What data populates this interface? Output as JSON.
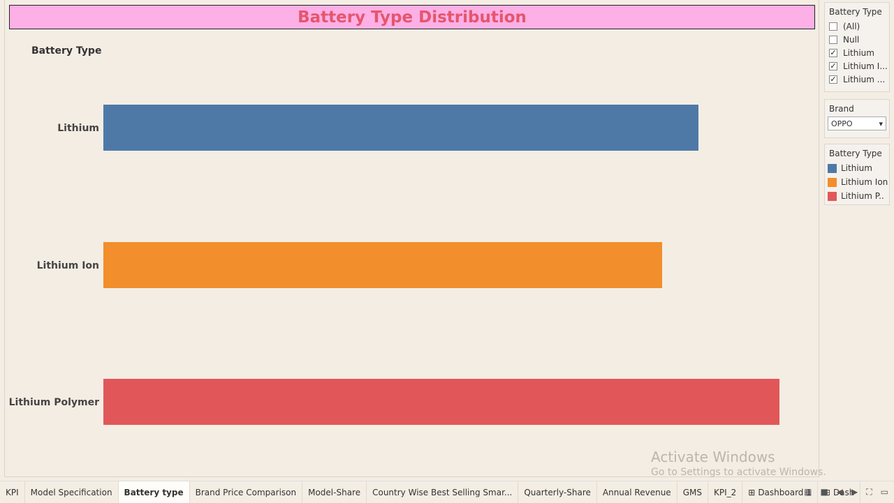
{
  "title": "Battery Type Distribution",
  "row_header": "Battery Type",
  "chart_data": {
    "type": "bar",
    "orientation": "horizontal",
    "categories": [
      "Lithium",
      "Lithium Ion",
      "Lithium Polymer"
    ],
    "values": [
      852,
      800,
      968
    ],
    "colors": [
      "#4e79a7",
      "#f28e2b",
      "#e15759"
    ],
    "title": "Battery Type Distribution",
    "ylabel": "Battery Type",
    "xlabel": "",
    "xlim": [
      0,
      1000
    ],
    "grid": false,
    "legend": "right"
  },
  "filter_battery": {
    "title": "Battery Type",
    "items": [
      {
        "label": "(All)",
        "checked": ""
      },
      {
        "label": "Null",
        "checked": ""
      },
      {
        "label": "Lithium",
        "checked": "✓"
      },
      {
        "label": "Lithium I...",
        "checked": "✓"
      },
      {
        "label": "Lithium ...",
        "checked": "✓"
      }
    ]
  },
  "filter_brand": {
    "title": "Brand",
    "value": "OPPO",
    "arrow": "▾"
  },
  "legend": {
    "title": "Battery Type",
    "items": [
      {
        "label": "Lithium",
        "color": "#4e79a7"
      },
      {
        "label": "Lithium Ion",
        "color": "#f28e2b"
      },
      {
        "label": "Lithium P..",
        "color": "#e15759"
      }
    ]
  },
  "tabs": [
    {
      "label": "KPI",
      "icon": ""
    },
    {
      "label": "Model Specification",
      "icon": ""
    },
    {
      "label": "Battery type",
      "icon": ""
    },
    {
      "label": "Brand Price Comparison",
      "icon": ""
    },
    {
      "label": "Model-Share",
      "icon": ""
    },
    {
      "label": "Country Wise Best Selling Smar...",
      "icon": ""
    },
    {
      "label": "Quarterly-Share",
      "icon": ""
    },
    {
      "label": "Annual Revenue",
      "icon": ""
    },
    {
      "label": "GMS",
      "icon": ""
    },
    {
      "label": "KPI_2",
      "icon": ""
    },
    {
      "label": "Dashboard 1",
      "icon": "⊞"
    },
    {
      "label": "Dash",
      "icon": "⊞"
    }
  ],
  "active_tab_index": 2,
  "tab_icons": {
    "sheet": "▦",
    "grid": "■",
    "prev": "◀",
    "next": "▶",
    "fit": "⛶",
    "present": "▭"
  },
  "watermark": {
    "line1": "Activate Windows",
    "line2": "Go to Settings to activate Windows."
  }
}
